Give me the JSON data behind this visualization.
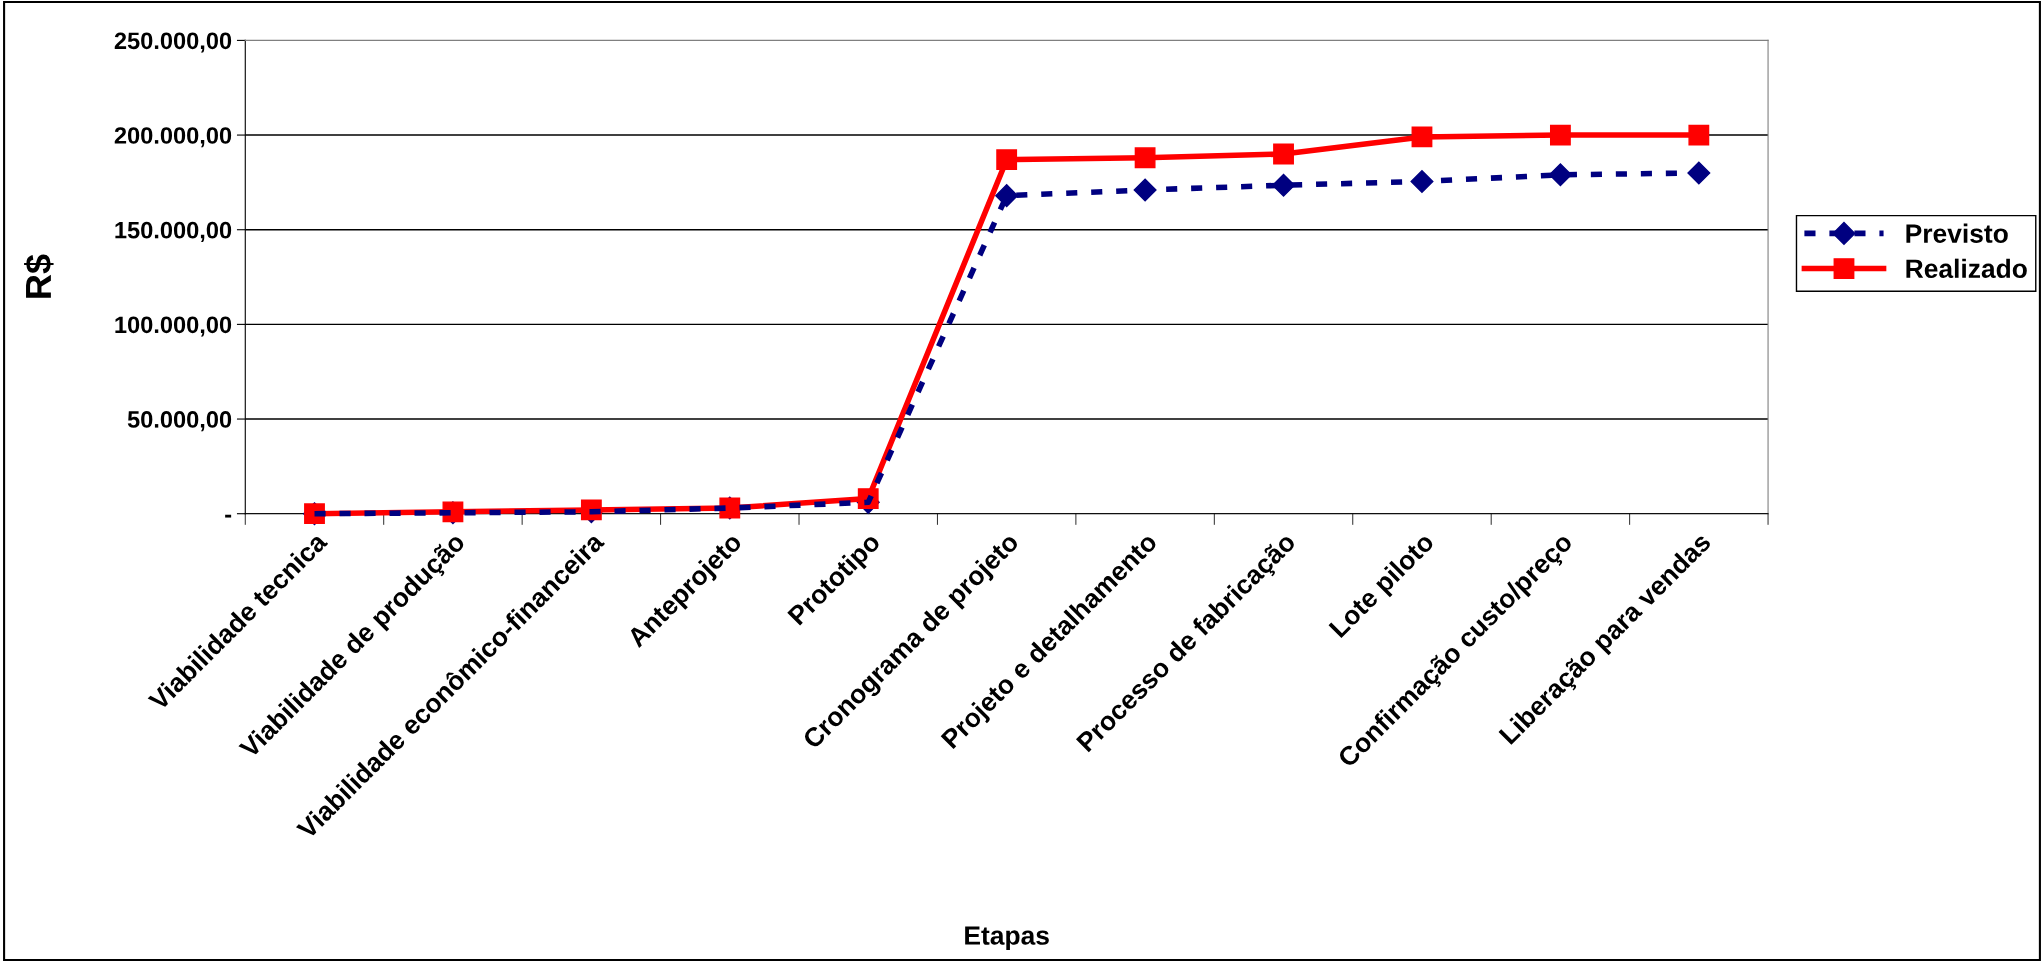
{
  "chart_data": {
    "type": "line",
    "xlabel": "Etapas",
    "ylabel": "R$",
    "categories": [
      "Viabilidade tecnica",
      "Viabilidade de produção",
      "Viabilidade econômico-financeira",
      "Anteprojeto",
      "Prototipo",
      "Cronograma de projeto",
      "Projeto e detalhamento",
      "Processo de fabricação",
      "Lote piloto",
      "Confirmação custo/preço",
      "Liberação para vendas"
    ],
    "series": [
      {
        "name": "Previsto",
        "color": "#000080",
        "marker": "diamond",
        "line_style": "dashed",
        "values": [
          0,
          500,
          1000,
          3000,
          6000,
          168000,
          171000,
          173500,
          175500,
          179000,
          180000
        ]
      },
      {
        "name": "Realizado",
        "color": "#ff0000",
        "marker": "square",
        "line_style": "solid",
        "values": [
          0,
          1000,
          2000,
          3000,
          8000,
          187000,
          188000,
          190000,
          199000,
          200000,
          200000
        ]
      }
    ],
    "ylim": [
      0,
      250000
    ],
    "yticks": [
      {
        "value": 0,
        "label": "-"
      },
      {
        "value": 50000,
        "label": "50.000,00"
      },
      {
        "value": 100000,
        "label": "100.000,00"
      },
      {
        "value": 150000,
        "label": "150.000,00"
      },
      {
        "value": 200000,
        "label": "200.000,00"
      },
      {
        "value": 250000,
        "label": "250.000,00"
      }
    ],
    "grid": "y",
    "legend": "right"
  }
}
